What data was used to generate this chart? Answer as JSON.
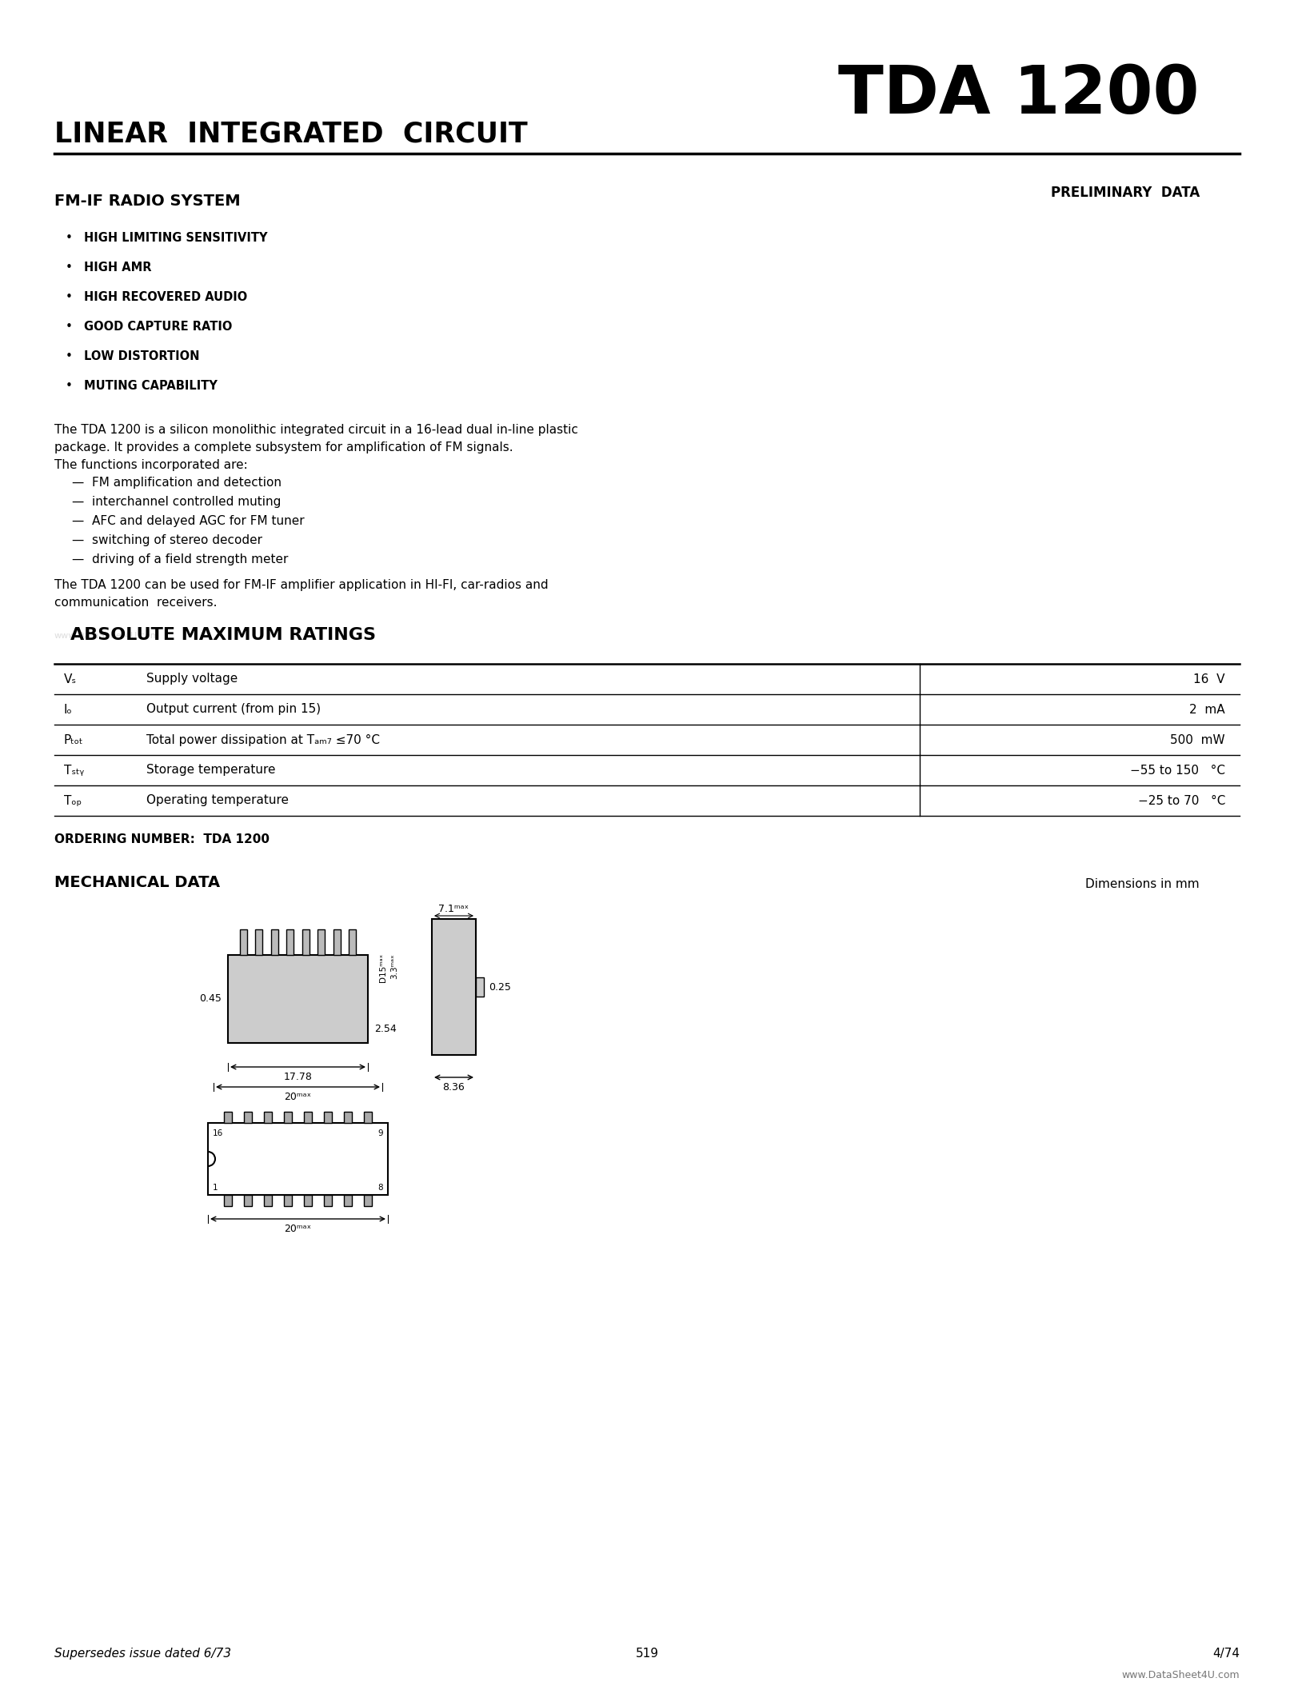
{
  "bg_color": "#ffffff",
  "title_tda": "TDA 1200",
  "title_linear": "LINEAR  INTEGRATED  CIRCUIT",
  "subtitle_fmif": "FM-IF RADIO SYSTEM",
  "preliminary": "PRELIMINARY  DATA",
  "bullets": [
    "HIGH LIMITING SENSITIVITY",
    "HIGH AMR",
    "HIGH RECOVERED AUDIO",
    "GOOD CAPTURE RATIO",
    "LOW DISTORTION",
    "MUTING CAPABILITY"
  ],
  "desc1a": "The TDA 1200 is a silicon monolithic integrated circuit in a 16-lead dual in-line plastic",
  "desc1b": "package. It provides a complete subsystem for amplification of FM signals.",
  "desc2": "The functions incorporated are:",
  "functions": [
    "—  FM amplification and detection",
    "—  interchannel controlled muting",
    "—  AFC and delayed AGC for FM tuner",
    "—  switching of stereo decoder",
    "—  driving of a field strength meter"
  ],
  "desc3a": "The TDA 1200 can be used for FM-IF amplifier application in HI-FI, car-radios and",
  "desc3b": "communication  receivers.",
  "abs_max_title": "ABSOLUTE MAXIMUM RATINGS",
  "ordering": "ORDERING NUMBER:  TDA 1200",
  "mech_title": "MECHANICAL DATA",
  "mech_dim": "Dimensions in mm",
  "footer_left": "Supersedes issue dated 6/73",
  "footer_center": "519",
  "footer_right": "4/74",
  "watermark": "www.DataSheet4U.com"
}
